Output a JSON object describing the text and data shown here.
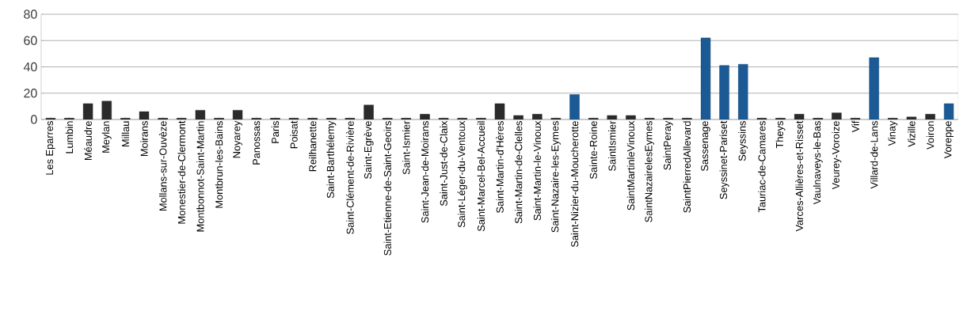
{
  "chart_data": {
    "type": "bar",
    "categories": [
      "Les Eparres",
      "Lumbin",
      "Méaudre",
      "Meylan",
      "Millau",
      "Moirans",
      "Mollans-sur-Ouvèze",
      "Monestier-de-Clermont",
      "Montbonnot-Saint-Martin",
      "Montbrun-les-Bains",
      "Noyarey",
      "Panossas",
      "Paris",
      "Poisat",
      "Reilhanette",
      "Saint-Barthélemy",
      "Saint-Clément-de-Rivière",
      "Saint-Egrève",
      "Saint-Etienne-de-Saint-Geoirs",
      "Saint-Ismier",
      "Saint-Jean-de-Moirans",
      "Saint-Just-de-Claix",
      "Saint-Léger-du-Ventoux",
      "Saint-Marcel-Bel-Accueil",
      "Saint-Martin-d'Hères",
      "Saint-Martin-de-Clelles",
      "Saint-Martin-le-Vinoux",
      "Saint-Nazaire-les-Eymes",
      "Saint-Nizier-du-Moucherotte",
      "Sainte-Roine",
      "SaintIsmier",
      "SaintMartinleVinoux",
      "SaintNazairelesEymes",
      "SaintPeray",
      "SaintPierredAllevard",
      "Sassenage",
      "Seyssinet-Pariset",
      "Seyssins",
      "Tauriac-de-Camares",
      "Theys",
      "Varces-Allières-et-Risset",
      "Vaulnaveys-le-Bas",
      "Veurey-Voroize",
      "Vif",
      "Villard-de-Lans",
      "Vinay",
      "Vizille",
      "Voiron",
      "Voreppe"
    ],
    "values": [
      1,
      1,
      12,
      14,
      1,
      6,
      1,
      1,
      7,
      1,
      7,
      1,
      1,
      1,
      1,
      1,
      1,
      11,
      1,
      1,
      4,
      1,
      1,
      1,
      12,
      3,
      4,
      1,
      19,
      1,
      3,
      3,
      1,
      1,
      1,
      62,
      41,
      42,
      1,
      1,
      4,
      1,
      5,
      1,
      47,
      1,
      2,
      4,
      12
    ],
    "colors": [
      "#2b2b2b",
      "#2b2b2b",
      "#2b2b2b",
      "#2b2b2b",
      "#2b2b2b",
      "#2b2b2b",
      "#2b2b2b",
      "#2b2b2b",
      "#2b2b2b",
      "#2b2b2b",
      "#2b2b2b",
      "#2b2b2b",
      "#2b2b2b",
      "#2b2b2b",
      "#2b2b2b",
      "#2b2b2b",
      "#2b2b2b",
      "#2b2b2b",
      "#2b2b2b",
      "#2b2b2b",
      "#2b2b2b",
      "#2b2b2b",
      "#2b2b2b",
      "#2b2b2b",
      "#2b2b2b",
      "#2b2b2b",
      "#2b2b2b",
      "#2b2b2b",
      "#1c5a96",
      "#2b2b2b",
      "#2b2b2b",
      "#2b2b2b",
      "#2b2b2b",
      "#2b2b2b",
      "#2b2b2b",
      "#1c5a96",
      "#1c5a96",
      "#1c5a96",
      "#2b2b2b",
      "#2b2b2b",
      "#2b2b2b",
      "#2b2b2b",
      "#2b2b2b",
      "#2b2b2b",
      "#1c5a96",
      "#2b2b2b",
      "#2b2b2b",
      "#2b2b2b",
      "#1c5a96"
    ],
    "ylim": [
      0,
      80
    ],
    "yticks": [
      0,
      20,
      40,
      60,
      80
    ],
    "grid": "y"
  }
}
